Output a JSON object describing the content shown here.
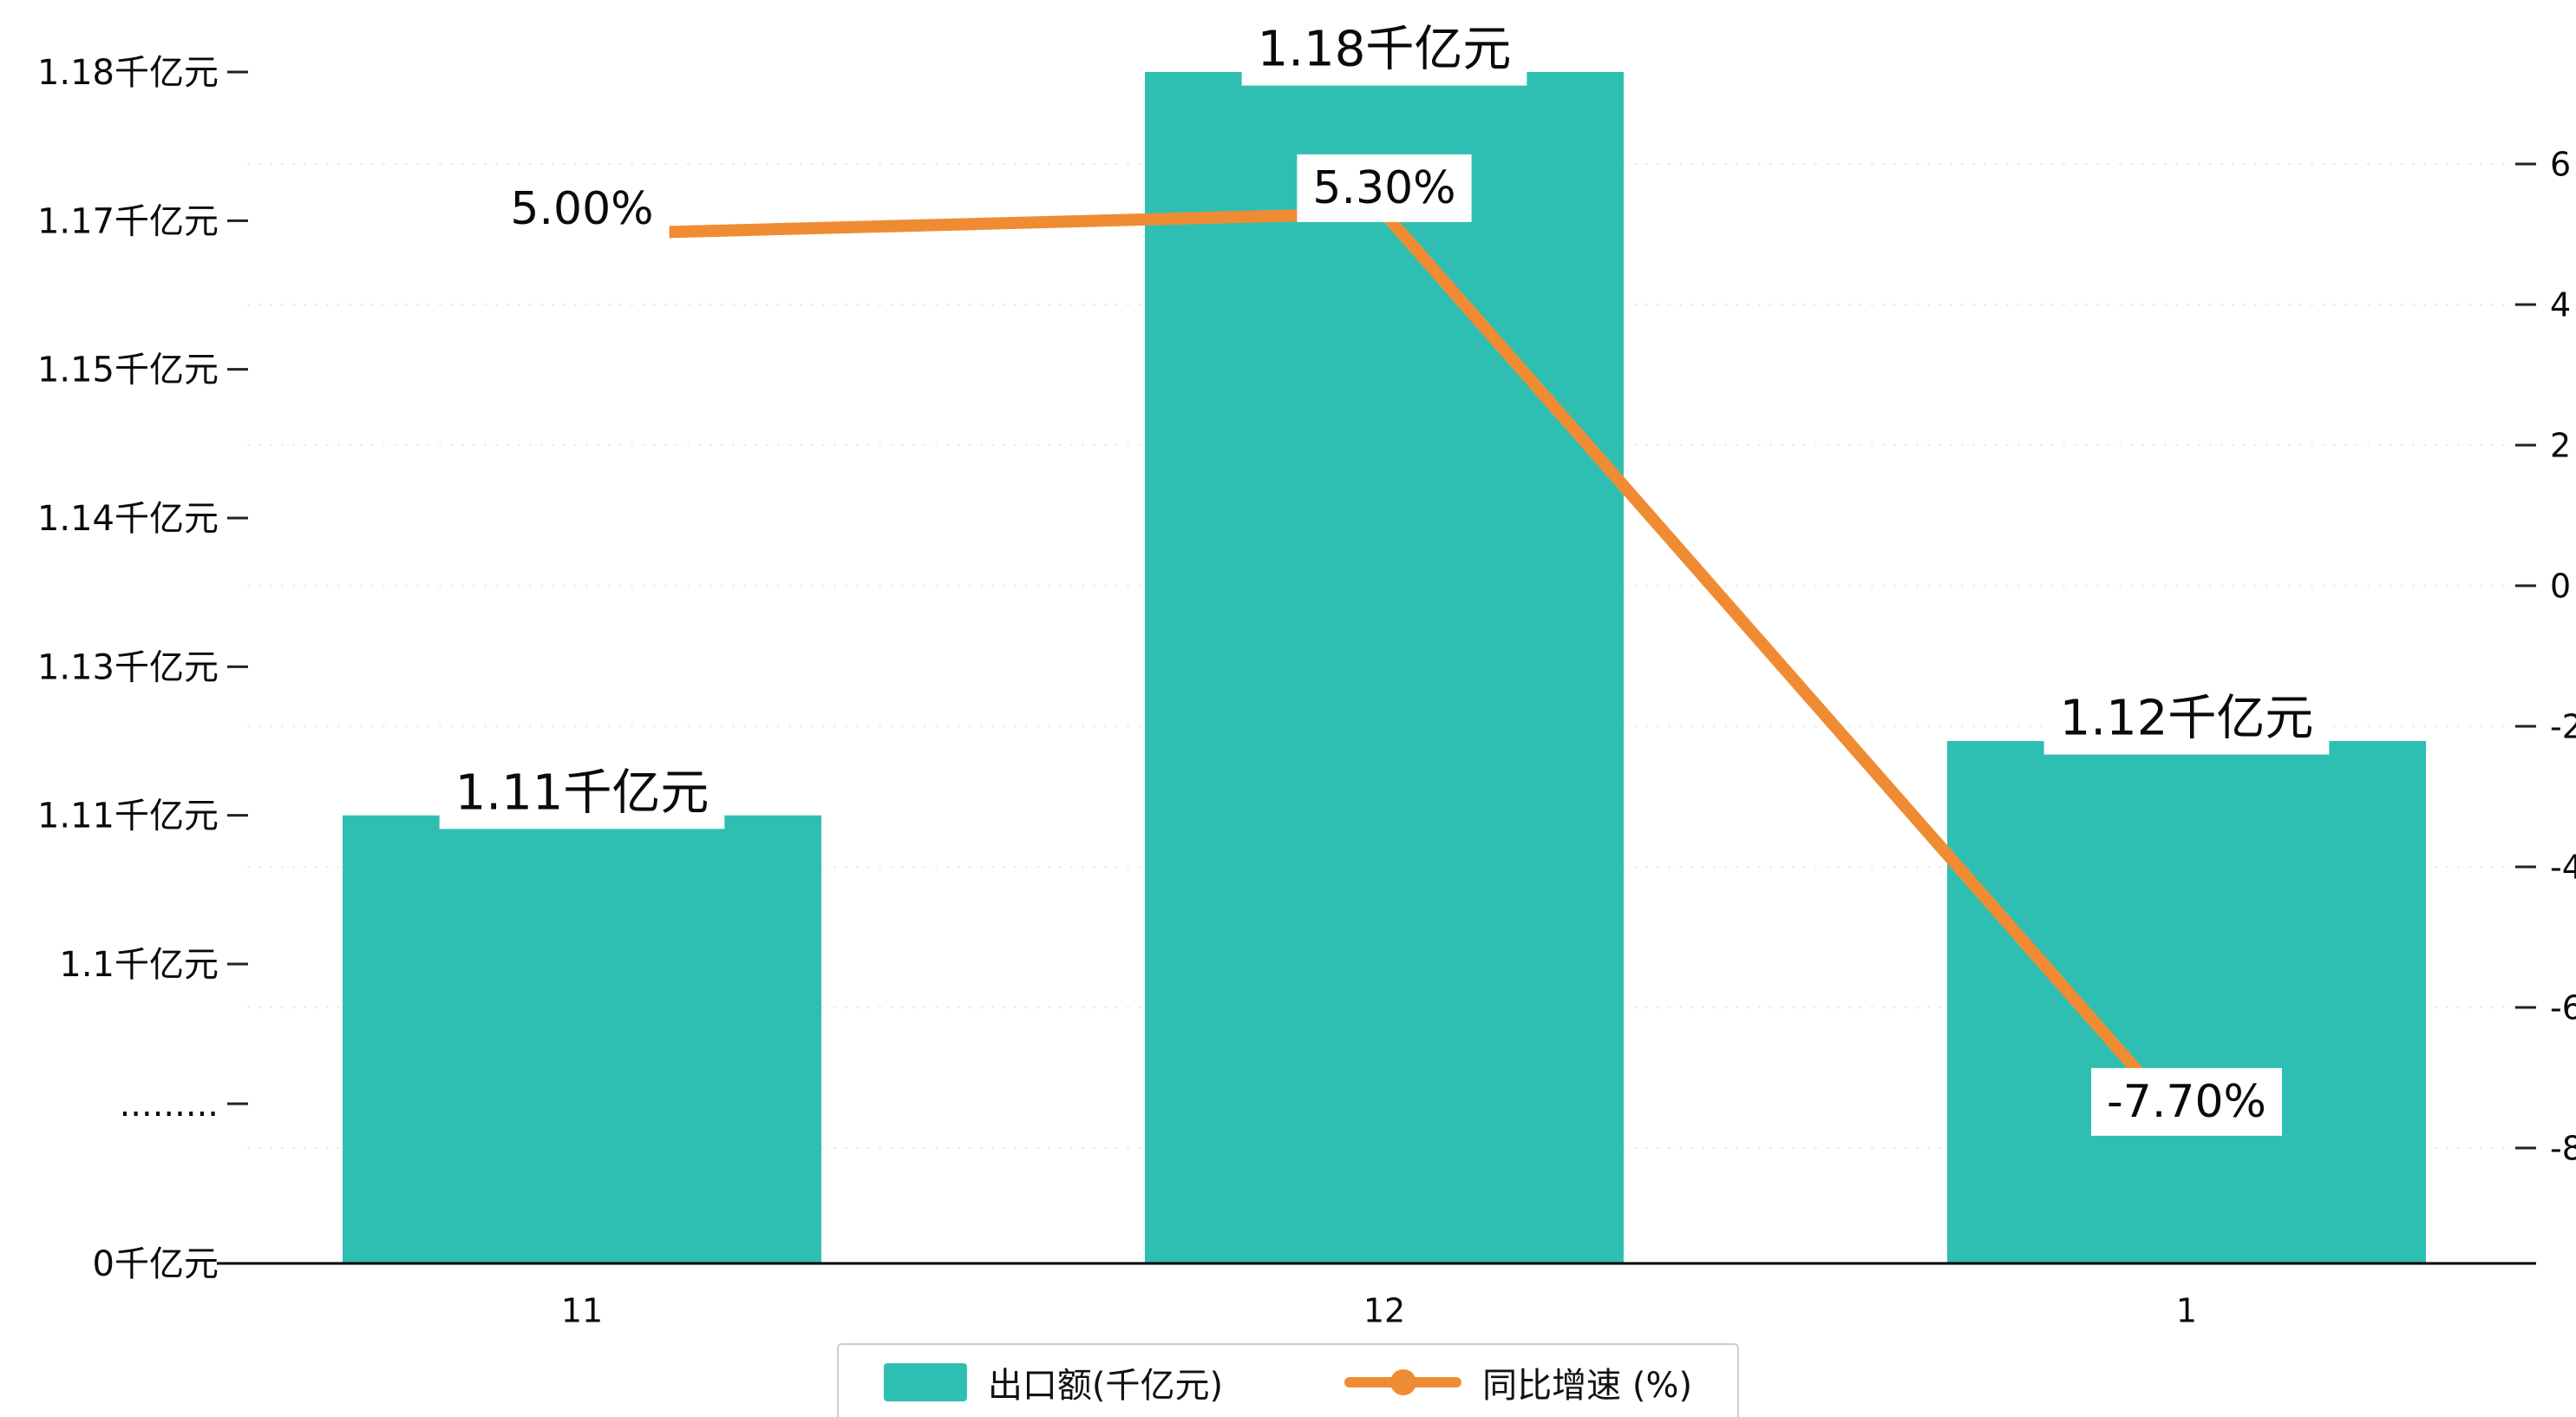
{
  "chart_data": {
    "type": "bar",
    "title": "",
    "categories": [
      "11",
      "12",
      "1"
    ],
    "series": [
      {
        "name": "出口额(千亿元)",
        "type": "bar",
        "axis": "left",
        "color": "#2fbfb2",
        "values": [
          1.11,
          1.18,
          1.12
        ],
        "labels": [
          "1.11千亿元",
          "1.18千亿元",
          "1.12千亿元"
        ]
      },
      {
        "name": "同比增速 (%)",
        "type": "line",
        "axis": "right",
        "color": "#ef8c33",
        "values": [
          5.0,
          5.3,
          -7.7
        ],
        "labels": [
          "5.00%",
          "5.30%",
          "-7.70%"
        ]
      }
    ],
    "left_axis": {
      "unit": "千亿元",
      "broken": true,
      "ticks": [
        {
          "label": "1.18千亿元",
          "value": 1.18
        },
        {
          "label": "1.17千亿元",
          "value": 1.17
        },
        {
          "label": "1.15千亿元",
          "value": 1.15
        },
        {
          "label": "1.14千亿元",
          "value": 1.14
        },
        {
          "label": "1.13千亿元",
          "value": 1.13
        },
        {
          "label": "1.11千亿元",
          "value": 1.11
        },
        {
          "label": "1.1千亿元",
          "value": 1.1
        },
        {
          "label": ".........",
          "value": null
        },
        {
          "label": "0千亿元",
          "value": 0
        }
      ]
    },
    "right_axis": {
      "unit": "%",
      "ticks": [
        6,
        4,
        2,
        0,
        -2,
        -4,
        -6,
        -8
      ]
    },
    "legend": [
      "出口额(千亿元)",
      "同比增速 (%)"
    ],
    "gridlines": true
  }
}
